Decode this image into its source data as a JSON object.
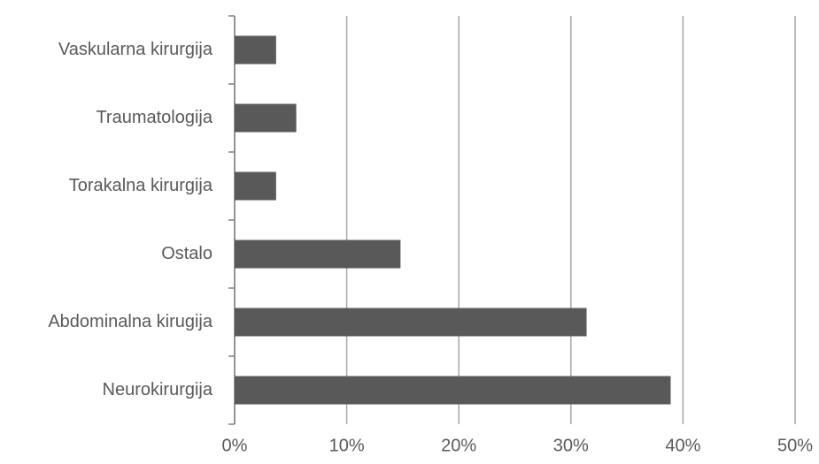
{
  "chart_data": {
    "type": "hbar",
    "categories": [
      "Neurokirurgija",
      "Abdominalna kirugija",
      "Ostalo",
      "Torakalna kirurgija",
      "Traumatologija",
      "Vaskularna kirurgija"
    ],
    "values": [
      38.9,
      31.4,
      14.8,
      3.7,
      5.5,
      3.7
    ],
    "color": "#595959",
    "xlim": [
      0,
      50
    ],
    "xticks": [
      {
        "value": 0,
        "label": "0%"
      },
      {
        "value": 10,
        "label": "10%"
      },
      {
        "value": 20,
        "label": "20%"
      },
      {
        "value": 30,
        "label": "30%"
      },
      {
        "value": 40,
        "label": "40%"
      },
      {
        "value": 50,
        "label": "50%"
      }
    ],
    "grid": true
  }
}
